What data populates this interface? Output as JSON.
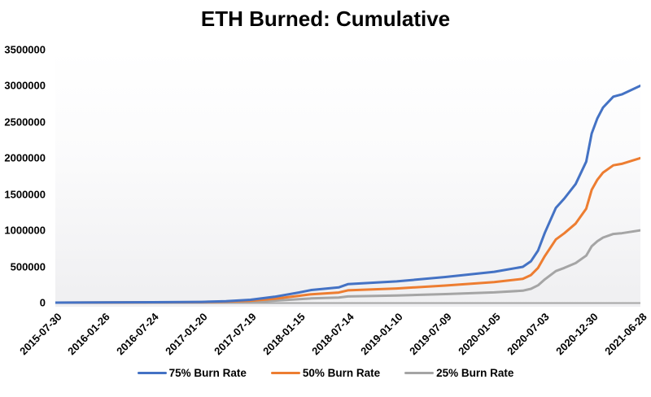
{
  "chart_data": {
    "type": "line",
    "title": "ETH Burned: Cumulative",
    "grid": false,
    "legend_position": "bottom",
    "plot_background": {
      "top_color": "#ffffff",
      "bottom_color": "#efeff1"
    },
    "axis_line_color": "#a6a6a6",
    "x_axis": {
      "type": "date",
      "min": "2015-07-30",
      "max": "2021-06-28",
      "tick_labels": [
        "2015-07-30",
        "2016-01-26",
        "2016-07-24",
        "2017-01-20",
        "2017-07-19",
        "2018-01-15",
        "2018-07-14",
        "2019-01-10",
        "2019-07-09",
        "2020-01-05",
        "2020-07-03",
        "2020-12-30",
        "2021-06-28"
      ],
      "tick_rotation_deg": -45
    },
    "y_axis": {
      "min": 0,
      "max": 3500000,
      "tick_step": 500000,
      "tick_labels": [
        "0",
        "500000",
        "1000000",
        "1500000",
        "2000000",
        "2500000",
        "3000000",
        "3500000"
      ]
    },
    "x": [
      "2015-07-30",
      "2016-01-26",
      "2016-07-24",
      "2017-01-20",
      "2017-04-20",
      "2017-07-19",
      "2017-10-16",
      "2018-01-15",
      "2018-03-01",
      "2018-06-10",
      "2018-07-14",
      "2019-01-10",
      "2019-07-09",
      "2020-01-05",
      "2020-04-20",
      "2020-05-20",
      "2020-06-15",
      "2020-07-10",
      "2020-08-20",
      "2020-09-20",
      "2020-11-01",
      "2020-12-10",
      "2020-12-30",
      "2021-01-20",
      "2021-02-10",
      "2021-03-20",
      "2021-04-20",
      "2021-06-28"
    ],
    "series": [
      {
        "name": "75% Burn Rate",
        "color": "#4472C4",
        "values": [
          0,
          2400,
          6000,
          10500,
          19500,
          39000,
          81000,
          141000,
          174000,
          210000,
          255000,
          294000,
          354000,
          426000,
          495000,
          573000,
          720000,
          966000,
          1311000,
          1440000,
          1641000,
          1950000,
          2340000,
          2550000,
          2700000,
          2850000,
          2880000,
          3000000
        ]
      },
      {
        "name": "50% Burn Rate",
        "color": "#ED7D31",
        "values": [
          0,
          1600,
          4000,
          7000,
          13000,
          26000,
          54000,
          94000,
          116000,
          140000,
          170000,
          196000,
          236000,
          284000,
          330000,
          382000,
          480000,
          644000,
          874000,
          960000,
          1094000,
          1300000,
          1560000,
          1700000,
          1800000,
          1900000,
          1920000,
          2000000
        ]
      },
      {
        "name": "25% Burn Rate",
        "color": "#A5A5A5",
        "values": [
          0,
          800,
          2000,
          3500,
          6500,
          13000,
          27000,
          47000,
          58000,
          70000,
          85000,
          98000,
          118000,
          142000,
          165000,
          191000,
          240000,
          322000,
          437000,
          480000,
          547000,
          650000,
          780000,
          850000,
          900000,
          950000,
          960000,
          1000000
        ]
      }
    ]
  }
}
